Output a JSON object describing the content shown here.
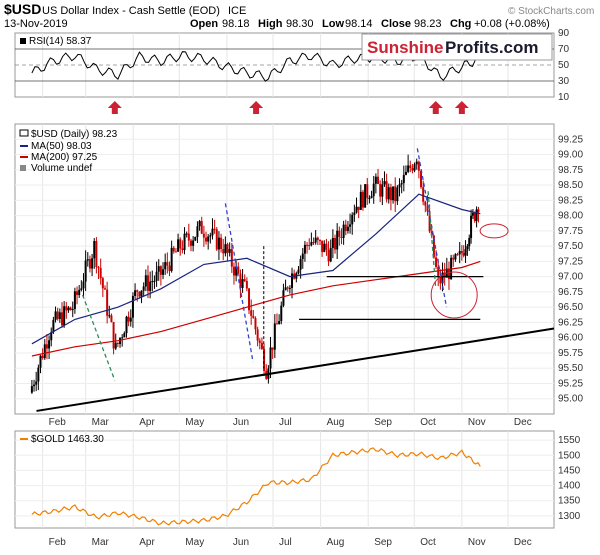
{
  "header": {
    "symbol": "$USD",
    "name": "US Dollar Index - Cash Settle (EOD)",
    "exchange": "ICE",
    "date": "13-Nov-2019",
    "open_label": "Open",
    "open": "98.18",
    "high_label": "High",
    "high": "98.30",
    "low_label": "Low",
    "low": "98.14",
    "close_label": "Close",
    "close": "98.23",
    "chg_label": "Chg",
    "chg": "+0.08 (+0.08%)",
    "watermark": "© StockCharts.com"
  },
  "logo": {
    "part1": "Sunshine",
    "part2": "Profits.com"
  },
  "colors": {
    "price_up": "#000000",
    "price_down": "#cc0000",
    "ma50": "#1a237e",
    "ma200": "#cc0000",
    "gold": "#f08000",
    "arrow": "#cc2233",
    "trend_dash_green": "#2e8b57",
    "trend_dash_blue": "#3344cc",
    "circle": "#cc2233"
  },
  "chart_data": [
    {
      "type": "line",
      "panel": "rsi",
      "legend": "RSI(14) 58.37",
      "ylim": [
        10,
        90
      ],
      "y_ticks": [
        90,
        70,
        50,
        30,
        10
      ],
      "reference_lines": [
        70,
        50,
        30
      ],
      "x": [
        "2019-01-25",
        "2019-02-08",
        "2019-02-22",
        "2019-03-08",
        "2019-03-22",
        "2019-04-05",
        "2019-04-19",
        "2019-05-03",
        "2019-05-17",
        "2019-05-31",
        "2019-06-14",
        "2019-06-28",
        "2019-07-12",
        "2019-07-26",
        "2019-08-09",
        "2019-08-23",
        "2019-09-06",
        "2019-09-20",
        "2019-10-04",
        "2019-10-18",
        "2019-11-01",
        "2019-11-13"
      ],
      "values": [
        40,
        55,
        62,
        45,
        38,
        60,
        55,
        62,
        58,
        48,
        40,
        35,
        55,
        62,
        50,
        58,
        60,
        55,
        62,
        35,
        48,
        58.37
      ],
      "markers": [
        {
          "type": "arrow-up",
          "x": "2019-03-20"
        },
        {
          "type": "arrow-up",
          "x": "2019-06-20"
        },
        {
          "type": "arrow-up",
          "x": "2019-10-15"
        },
        {
          "type": "arrow-up",
          "x": "2019-11-01"
        }
      ]
    },
    {
      "type": "candlestick",
      "panel": "price",
      "legend": [
        "$USD (Daily) 98.23",
        "MA(50) 98.03",
        "MA(200) 97.25",
        "Volume undef"
      ],
      "ylim": [
        94.75,
        99.5
      ],
      "y_ticks": [
        "99.25",
        "99.00",
        "98.75",
        "98.50",
        "98.25",
        "98.00",
        "97.75",
        "97.50",
        "97.25",
        "97.00",
        "96.75",
        "96.50",
        "96.25",
        "96.00",
        "95.75",
        "95.50",
        "95.25",
        "95.00"
      ],
      "x_ticks": [
        "Feb",
        "Mar",
        "Apr",
        "May",
        "Jun",
        "Jul",
        "Aug",
        "Sep",
        "Oct",
        "Nov",
        "Dec"
      ],
      "series": [
        {
          "name": "$USD (Daily)",
          "x": [
            "2019-01-25",
            "2019-02-08",
            "2019-02-22",
            "2019-03-08",
            "2019-03-22",
            "2019-04-05",
            "2019-04-19",
            "2019-05-03",
            "2019-05-17",
            "2019-05-31",
            "2019-06-14",
            "2019-06-28",
            "2019-07-12",
            "2019-07-26",
            "2019-08-09",
            "2019-08-23",
            "2019-09-06",
            "2019-09-20",
            "2019-10-04",
            "2019-10-18",
            "2019-11-01",
            "2019-11-13"
          ],
          "values": [
            95.1,
            96.2,
            96.5,
            97.5,
            95.8,
            96.8,
            97.0,
            97.5,
            97.8,
            97.5,
            96.8,
            95.5,
            96.9,
            97.6,
            97.4,
            98.1,
            98.5,
            98.3,
            99.0,
            96.9,
            97.3,
            98.23
          ]
        },
        {
          "name": "MA(50)",
          "x": [
            "2019-01-25",
            "2019-02-22",
            "2019-03-22",
            "2019-04-19",
            "2019-05-17",
            "2019-06-14",
            "2019-07-12",
            "2019-08-09",
            "2019-09-06",
            "2019-10-04",
            "2019-11-01",
            "2019-11-13"
          ],
          "values": [
            95.9,
            96.3,
            96.5,
            96.8,
            97.2,
            97.3,
            97.0,
            97.1,
            97.7,
            98.35,
            98.1,
            98.03
          ]
        },
        {
          "name": "MA(200)",
          "x": [
            "2019-01-25",
            "2019-02-22",
            "2019-03-22",
            "2019-04-19",
            "2019-05-17",
            "2019-06-14",
            "2019-07-12",
            "2019-08-09",
            "2019-09-06",
            "2019-10-04",
            "2019-11-01",
            "2019-11-13"
          ],
          "values": [
            95.7,
            95.85,
            95.95,
            96.1,
            96.3,
            96.5,
            96.7,
            96.85,
            96.95,
            97.05,
            97.15,
            97.25
          ]
        }
      ],
      "annotations": {
        "support_line": {
          "from": [
            "2019-01-28",
            94.8
          ],
          "to": [
            "2019-12-31",
            96.15
          ]
        },
        "horizontal_lines": [
          {
            "y": 97.0,
            "from": "2019-08-05",
            "to": "2019-11-15"
          },
          {
            "y": 96.3,
            "from": "2019-07-18",
            "to": "2019-11-13"
          }
        ]
      }
    },
    {
      "type": "line",
      "panel": "gold",
      "legend": "$GOLD 1463.30",
      "ylim": [
        1260,
        1580
      ],
      "y_ticks": [
        1550,
        1500,
        1450,
        1400,
        1350,
        1300
      ],
      "x_ticks": [
        "Feb",
        "Mar",
        "Apr",
        "May",
        "Jun",
        "Jul",
        "Aug",
        "Sep",
        "Oct",
        "Nov",
        "Dec"
      ],
      "x": [
        "2019-01-25",
        "2019-02-08",
        "2019-02-22",
        "2019-03-08",
        "2019-03-22",
        "2019-04-05",
        "2019-04-19",
        "2019-05-03",
        "2019-05-17",
        "2019-05-31",
        "2019-06-14",
        "2019-06-28",
        "2019-07-12",
        "2019-07-26",
        "2019-08-09",
        "2019-08-23",
        "2019-09-06",
        "2019-09-20",
        "2019-10-04",
        "2019-10-18",
        "2019-11-01",
        "2019-11-13"
      ],
      "values": [
        1305,
        1315,
        1330,
        1295,
        1310,
        1295,
        1275,
        1280,
        1285,
        1300,
        1345,
        1410,
        1410,
        1420,
        1500,
        1510,
        1520,
        1500,
        1505,
        1490,
        1510,
        1463.3
      ]
    }
  ]
}
